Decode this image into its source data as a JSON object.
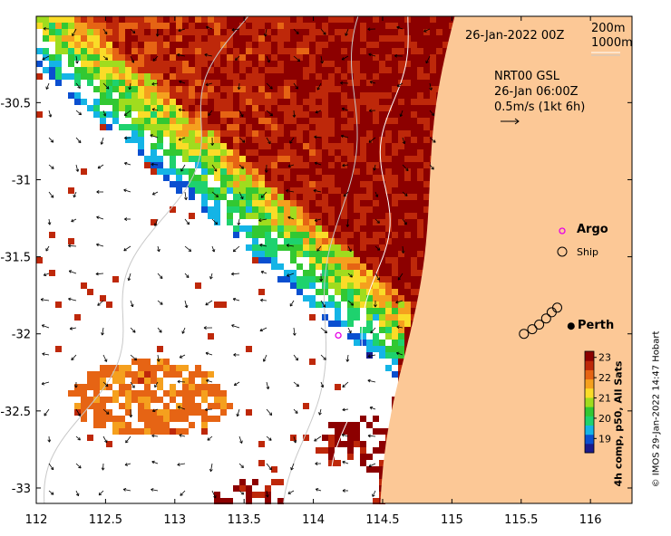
{
  "date_label": "26-Jan-2022 00Z",
  "isobath_labels": [
    "200m",
    "1000m"
  ],
  "currents": {
    "title": "NRT00 GSL",
    "time": "26-Jan 06:00Z",
    "scale_label": "0.5m/s (1kt 6h)"
  },
  "legend": {
    "argo": "Argo",
    "ship": "Ship"
  },
  "places": [
    {
      "name": "Perth",
      "lon": 115.86,
      "lat": -31.95
    }
  ],
  "colorbar": {
    "title": "4h comp, p50, All Sats",
    "min": 18.3,
    "max": 23.3,
    "ticks": [
      "19",
      "20",
      "21",
      "22",
      "23"
    ],
    "colors": [
      "#1a1a8c",
      "#0a4fd0",
      "#14b4e6",
      "#1ed26e",
      "#32c832",
      "#a0dc1e",
      "#fadc28",
      "#f5a01e",
      "#e66414",
      "#be280a",
      "#8c0000"
    ]
  },
  "credit": "© IMOS 29-Jan-2022 14:47 Hobart",
  "axes": {
    "x_ticks": [
      "112",
      "112.5",
      "113",
      "113.5",
      "114",
      "114.5",
      "115",
      "115.5",
      "116"
    ],
    "y_ticks": [
      "-30.5",
      "-31",
      "-31.5",
      "-32",
      "-32.5",
      "-33"
    ],
    "xlim": [
      112.0,
      116.3
    ],
    "ylim": [
      -33.1,
      -29.94
    ]
  },
  "colors": {
    "land": "#fcc896",
    "contour_200": "#ffffff",
    "contour_1000": "#c8c8c8",
    "argo": "#e600e6"
  },
  "argo_floats": [
    {
      "lon": 114.18,
      "lat": -32.01
    }
  ],
  "ship_track": [
    {
      "lon": 115.52,
      "lat": -32.0
    },
    {
      "lon": 115.58,
      "lat": -31.97
    },
    {
      "lon": 115.63,
      "lat": -31.94
    },
    {
      "lon": 115.68,
      "lat": -31.9
    },
    {
      "lon": 115.72,
      "lat": -31.86
    },
    {
      "lon": 115.76,
      "lat": -31.83
    }
  ]
}
